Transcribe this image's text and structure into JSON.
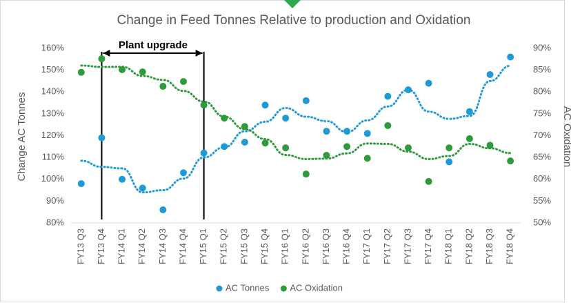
{
  "chart_data": {
    "type": "scatter",
    "title": "Change in Feed Tonnes Relative to production and Oxidation",
    "y_label": "Change AC Tonnes",
    "y2_label": "AC Oxidation",
    "annotation": "Plant upgrade",
    "categories": [
      "FY13 Q3",
      "FY13 Q4",
      "FY14 Q1",
      "FY14 Q2",
      "FY14 Q3",
      "FY14 Q4",
      "FY15 Q1",
      "FY15 Q2",
      "FY15 Q3",
      "FY15 Q4",
      "FY16 Q1",
      "FY16 Q2",
      "FY16 Q3",
      "FY16 Q4",
      "FY17 Q1",
      "FY17 Q2",
      "FY17 Q3",
      "FY17 Q4",
      "FY18 Q1",
      "FY18 Q2",
      "FY18 Q3",
      "FY18 Q4"
    ],
    "series": [
      {
        "name": "AC Tonnes",
        "color": "#1f9ad6",
        "values": [
          98,
          119,
          100,
          96,
          86,
          103,
          112,
          115,
          117,
          134,
          128,
          136,
          122,
          122,
          121,
          138,
          141,
          144,
          108,
          131,
          148,
          156
        ]
      },
      {
        "name": "AC Oxidation",
        "color": "#2e9a3c",
        "axis": "y2",
        "values": [
          84.5,
          87.6,
          85.1,
          84.6,
          81.3,
          82.4,
          77.0,
          74.0,
          72.1,
          68.3,
          67.2,
          61.2,
          65.5,
          67.5,
          64.8,
          72.3,
          67.2,
          59.5,
          67.2,
          69.3,
          67.8,
          64.2
        ]
      }
    ],
    "ylim": [
      80,
      160
    ],
    "yticks": [
      {
        "value": 80,
        "label": "80%"
      },
      {
        "value": 90,
        "label": "90%"
      },
      {
        "value": 100,
        "label": "100%"
      },
      {
        "value": 110,
        "label": "110%"
      },
      {
        "value": 120,
        "label": "120%"
      },
      {
        "value": 130,
        "label": "130%"
      },
      {
        "value": 140,
        "label": "140%"
      },
      {
        "value": 150,
        "label": "150%"
      },
      {
        "value": 160,
        "label": "160%"
      }
    ],
    "y2lim": [
      50,
      90
    ],
    "y2ticks": [
      {
        "value": 50,
        "label": "50%"
      },
      {
        "value": 55,
        "label": "55%"
      },
      {
        "value": 60,
        "label": "60%"
      },
      {
        "value": 65,
        "label": "65%"
      },
      {
        "value": 70,
        "label": "70%"
      },
      {
        "value": 75,
        "label": "75%"
      },
      {
        "value": 80,
        "label": "80%"
      },
      {
        "value": 85,
        "label": "85%"
      },
      {
        "value": 90,
        "label": "90%"
      }
    ],
    "legend": "bottom",
    "trendline": true
  }
}
